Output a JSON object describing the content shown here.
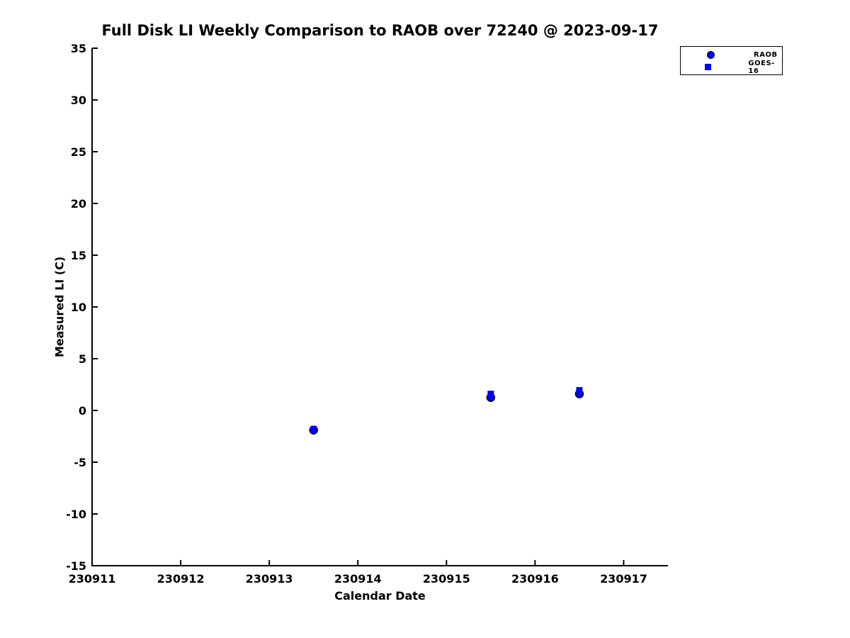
{
  "title": "Full Disk LI Weekly Comparison to RAOB over 72240 @ 2023-09-17",
  "colors": {
    "marker_blue": "#0000FF",
    "marker_edge": "#000000",
    "axis": "#000000",
    "text": "#000000",
    "background": "#FFFFFF"
  },
  "legend": {
    "position": "upper right",
    "items": [
      {
        "label": "RAOB",
        "marker": "circle"
      },
      {
        "label": "GOES-16",
        "marker": "square"
      }
    ]
  },
  "chart_data": {
    "type": "scatter",
    "title": "Full Disk LI Weekly Comparison to RAOB over 72240 @ 2023-09-17",
    "xlabel": "Calendar Date",
    "ylabel": "Measured LI (C)",
    "xlim": [
      230911,
      230917.5
    ],
    "ylim": [
      -15,
      35
    ],
    "xticks": [
      230911,
      230912,
      230913,
      230914,
      230915,
      230916,
      230917
    ],
    "yticks": [
      35,
      30,
      25,
      20,
      15,
      10,
      5,
      0,
      -5,
      -10,
      -15
    ],
    "grid": false,
    "legend_position": "upper right",
    "series": [
      {
        "name": "RAOB",
        "marker": "circle",
        "color": "#0000FF",
        "edge_color": "#000000",
        "points": [
          [
            230913.5,
            -1.9
          ],
          [
            230915.5,
            1.25
          ],
          [
            230916.5,
            1.6
          ]
        ]
      },
      {
        "name": "GOES-16",
        "marker": "square",
        "color": "#0000FF",
        "edge_color": "#0000FF",
        "points": [
          [
            230913.5,
            -1.8
          ],
          [
            230915.5,
            1.6
          ],
          [
            230916.5,
            1.95
          ]
        ]
      }
    ]
  }
}
